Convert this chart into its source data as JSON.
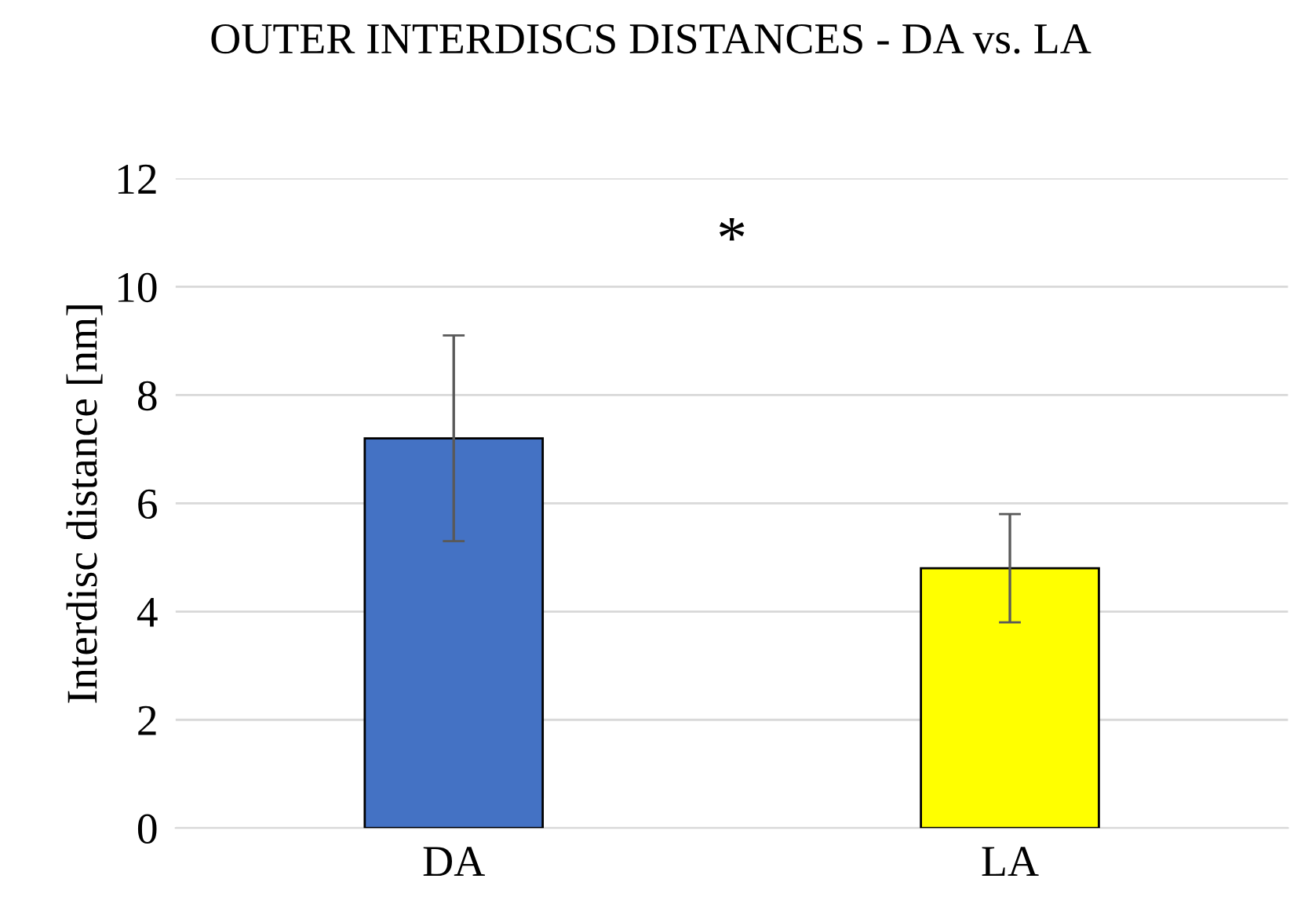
{
  "chart_data": {
    "type": "bar",
    "title": "OUTER INTERDISCS DISTANCES - DA vs. LA",
    "ylabel": "Interdisc distance [nm]",
    "categories": [
      "DA",
      "LA"
    ],
    "values": [
      7.2,
      4.8
    ],
    "errors": [
      1.9,
      1.0
    ],
    "colors": [
      "#4472c4",
      "#ffff00"
    ],
    "ylim": [
      0,
      12
    ],
    "yticks": [
      0,
      2,
      4,
      6,
      8,
      10,
      12
    ],
    "grid": "y",
    "legend": false,
    "annotations": [
      "*"
    ]
  }
}
